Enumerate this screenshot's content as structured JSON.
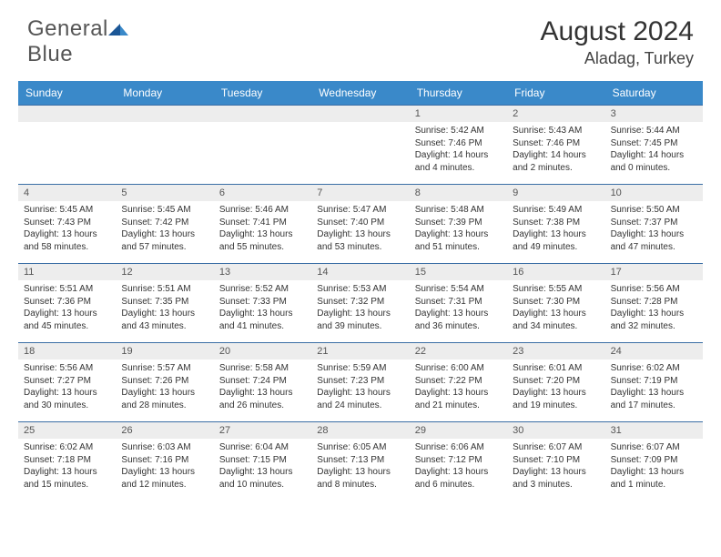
{
  "brand": {
    "name_gray": "General",
    "name_blue": "Blue"
  },
  "title": "August 2024",
  "location": "Aladag, Turkey",
  "colors": {
    "header_bg": "#3a89c9",
    "header_text": "#ffffff",
    "row_border": "#3a6ea5",
    "daynum_bg": "#ededed",
    "body_text": "#333333",
    "logo_gray": "#555555",
    "logo_blue": "#3bb8e0",
    "background": "#ffffff"
  },
  "day_names": [
    "Sunday",
    "Monday",
    "Tuesday",
    "Wednesday",
    "Thursday",
    "Friday",
    "Saturday"
  ],
  "weeks": [
    [
      null,
      null,
      null,
      null,
      {
        "d": "1",
        "sr": "5:42 AM",
        "ss": "7:46 PM",
        "dl": "14 hours and 4 minutes."
      },
      {
        "d": "2",
        "sr": "5:43 AM",
        "ss": "7:46 PM",
        "dl": "14 hours and 2 minutes."
      },
      {
        "d": "3",
        "sr": "5:44 AM",
        "ss": "7:45 PM",
        "dl": "14 hours and 0 minutes."
      }
    ],
    [
      {
        "d": "4",
        "sr": "5:45 AM",
        "ss": "7:43 PM",
        "dl": "13 hours and 58 minutes."
      },
      {
        "d": "5",
        "sr": "5:45 AM",
        "ss": "7:42 PM",
        "dl": "13 hours and 57 minutes."
      },
      {
        "d": "6",
        "sr": "5:46 AM",
        "ss": "7:41 PM",
        "dl": "13 hours and 55 minutes."
      },
      {
        "d": "7",
        "sr": "5:47 AM",
        "ss": "7:40 PM",
        "dl": "13 hours and 53 minutes."
      },
      {
        "d": "8",
        "sr": "5:48 AM",
        "ss": "7:39 PM",
        "dl": "13 hours and 51 minutes."
      },
      {
        "d": "9",
        "sr": "5:49 AM",
        "ss": "7:38 PM",
        "dl": "13 hours and 49 minutes."
      },
      {
        "d": "10",
        "sr": "5:50 AM",
        "ss": "7:37 PM",
        "dl": "13 hours and 47 minutes."
      }
    ],
    [
      {
        "d": "11",
        "sr": "5:51 AM",
        "ss": "7:36 PM",
        "dl": "13 hours and 45 minutes."
      },
      {
        "d": "12",
        "sr": "5:51 AM",
        "ss": "7:35 PM",
        "dl": "13 hours and 43 minutes."
      },
      {
        "d": "13",
        "sr": "5:52 AM",
        "ss": "7:33 PM",
        "dl": "13 hours and 41 minutes."
      },
      {
        "d": "14",
        "sr": "5:53 AM",
        "ss": "7:32 PM",
        "dl": "13 hours and 39 minutes."
      },
      {
        "d": "15",
        "sr": "5:54 AM",
        "ss": "7:31 PM",
        "dl": "13 hours and 36 minutes."
      },
      {
        "d": "16",
        "sr": "5:55 AM",
        "ss": "7:30 PM",
        "dl": "13 hours and 34 minutes."
      },
      {
        "d": "17",
        "sr": "5:56 AM",
        "ss": "7:28 PM",
        "dl": "13 hours and 32 minutes."
      }
    ],
    [
      {
        "d": "18",
        "sr": "5:56 AM",
        "ss": "7:27 PM",
        "dl": "13 hours and 30 minutes."
      },
      {
        "d": "19",
        "sr": "5:57 AM",
        "ss": "7:26 PM",
        "dl": "13 hours and 28 minutes."
      },
      {
        "d": "20",
        "sr": "5:58 AM",
        "ss": "7:24 PM",
        "dl": "13 hours and 26 minutes."
      },
      {
        "d": "21",
        "sr": "5:59 AM",
        "ss": "7:23 PM",
        "dl": "13 hours and 24 minutes."
      },
      {
        "d": "22",
        "sr": "6:00 AM",
        "ss": "7:22 PM",
        "dl": "13 hours and 21 minutes."
      },
      {
        "d": "23",
        "sr": "6:01 AM",
        "ss": "7:20 PM",
        "dl": "13 hours and 19 minutes."
      },
      {
        "d": "24",
        "sr": "6:02 AM",
        "ss": "7:19 PM",
        "dl": "13 hours and 17 minutes."
      }
    ],
    [
      {
        "d": "25",
        "sr": "6:02 AM",
        "ss": "7:18 PM",
        "dl": "13 hours and 15 minutes."
      },
      {
        "d": "26",
        "sr": "6:03 AM",
        "ss": "7:16 PM",
        "dl": "13 hours and 12 minutes."
      },
      {
        "d": "27",
        "sr": "6:04 AM",
        "ss": "7:15 PM",
        "dl": "13 hours and 10 minutes."
      },
      {
        "d": "28",
        "sr": "6:05 AM",
        "ss": "7:13 PM",
        "dl": "13 hours and 8 minutes."
      },
      {
        "d": "29",
        "sr": "6:06 AM",
        "ss": "7:12 PM",
        "dl": "13 hours and 6 minutes."
      },
      {
        "d": "30",
        "sr": "6:07 AM",
        "ss": "7:10 PM",
        "dl": "13 hours and 3 minutes."
      },
      {
        "d": "31",
        "sr": "6:07 AM",
        "ss": "7:09 PM",
        "dl": "13 hours and 1 minute."
      }
    ]
  ],
  "labels": {
    "sunrise": "Sunrise:",
    "sunset": "Sunset:",
    "daylight": "Daylight:"
  }
}
